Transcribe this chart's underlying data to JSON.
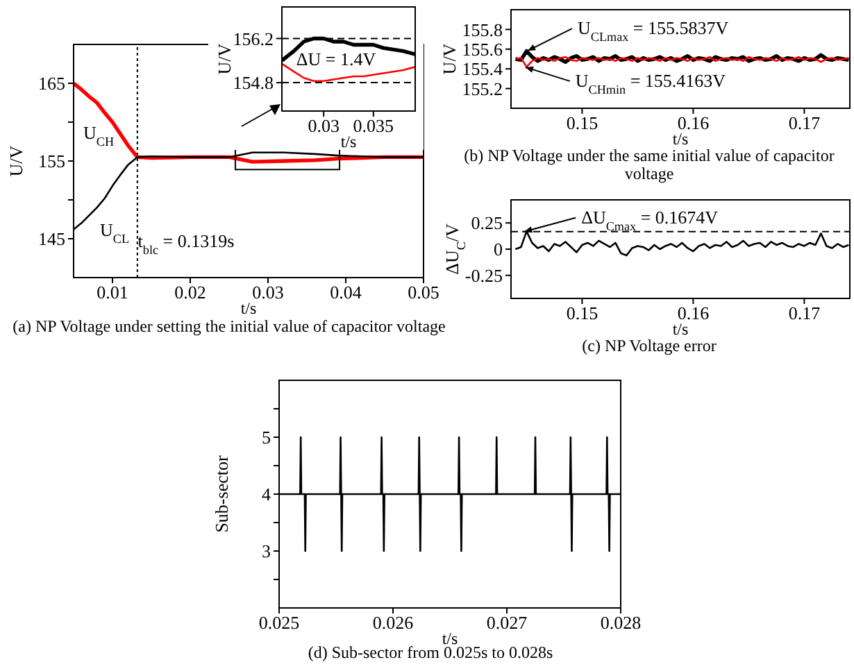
{
  "chart_data": [
    {
      "type": "line",
      "title": "(a) NP Voltage under setting the initial value of capacitor voltage",
      "xlabel": "t/s",
      "ylabel": "U/V",
      "xlim": [
        0.005,
        0.05
      ],
      "xticks": [
        0.01,
        0.02,
        0.03,
        0.04,
        0.05
      ],
      "ylim": [
        140,
        170
      ],
      "yticks": [
        145,
        {
          "value": 150,
          "label": null
        },
        155,
        {
          "value": 160,
          "label": null
        },
        165
      ],
      "series": [
        {
          "name": "U$_{CH}$",
          "color": "#ff0000",
          "x": [
            0.005,
            0.006,
            0.007,
            0.008,
            0.009,
            0.01,
            0.011,
            0.012,
            0.0132,
            0.015,
            0.02,
            0.025,
            0.028,
            0.032,
            0.036,
            0.039,
            0.042,
            0.045,
            0.05
          ],
          "values": [
            165,
            164.2,
            163.3,
            162.5,
            161.2,
            160,
            158.5,
            157,
            155.5,
            155.4,
            155.5,
            155.5,
            154.9,
            155,
            155.1,
            155.3,
            155.4,
            155.5,
            155.5
          ]
        },
        {
          "name": "U$_{CL}$",
          "color": "#000000",
          "x": [
            0.005,
            0.006,
            0.007,
            0.008,
            0.009,
            0.01,
            0.011,
            0.012,
            0.0132,
            0.015,
            0.02,
            0.025,
            0.028,
            0.032,
            0.036,
            0.039,
            0.042,
            0.045,
            0.05
          ],
          "values": [
            146.2,
            147,
            148,
            149,
            150.2,
            151.8,
            153.2,
            154.5,
            155.5,
            155.6,
            155.5,
            155.5,
            156.1,
            156.1,
            155.9,
            155.7,
            155.6,
            155.5,
            155.5
          ]
        }
      ],
      "ref_lines": [
        {
          "axis": "x",
          "value": 0.0132,
          "line_style": "dotted",
          "color": "#000000"
        }
      ],
      "annotations": [
        "t$_{blc}$ = 0.1319s"
      ]
    },
    {
      "type": "line",
      "ylabel": "U/V",
      "xlabel": "t/s",
      "xlim": [
        0.0258,
        0.0392
      ],
      "xticks": [
        0.03,
        0.035
      ],
      "ylim": [
        153.9,
        157.2
      ],
      "yticks": [
        154.8,
        156.2
      ],
      "series": [
        {
          "color": "#000000",
          "x": [
            0.0258,
            0.027,
            0.028,
            0.029,
            0.03,
            0.031,
            0.032,
            0.033,
            0.034,
            0.035,
            0.036,
            0.037,
            0.038,
            0.0392
          ],
          "values": [
            155.5,
            155.8,
            156.1,
            156.2,
            156.2,
            156.1,
            156.1,
            156.0,
            156.0,
            156.0,
            155.9,
            155.85,
            155.8,
            155.7
          ]
        },
        {
          "color": "#ff0000",
          "x": [
            0.0258,
            0.027,
            0.028,
            0.029,
            0.03,
            0.031,
            0.032,
            0.033,
            0.034,
            0.035,
            0.036,
            0.037,
            0.038,
            0.0392
          ],
          "values": [
            155.4,
            155.15,
            154.95,
            154.85,
            154.85,
            154.9,
            154.95,
            155.0,
            155.0,
            155.05,
            155.1,
            155.15,
            155.2,
            155.3
          ]
        }
      ],
      "ref_lines": [
        {
          "axis": "y",
          "value": 154.8,
          "line_style": "dashed",
          "color": "#000000"
        },
        {
          "axis": "y",
          "value": 156.2,
          "line_style": "dashed",
          "color": "#000000"
        }
      ],
      "annotations": [
        "ΔU = 1.4V"
      ]
    },
    {
      "type": "line",
      "title": "(b) NP Voltage under the same initial value of capacitor voltage",
      "xlabel": "t/s",
      "ylabel": "U/V",
      "xlim": [
        0.1436,
        0.1741
      ],
      "xticks": [
        0.15,
        0.16,
        0.17
      ],
      "ylim": [
        155,
        156
      ],
      "yticks": [
        155.2,
        155.4,
        155.6,
        155.8
      ],
      "x": [
        0.144,
        0.1445,
        0.145,
        0.1455,
        0.146,
        0.1465,
        0.147,
        0.1475,
        0.148,
        0.1485,
        0.149,
        0.1495,
        0.15,
        0.1505,
        0.151,
        0.1515,
        0.152,
        0.1525,
        0.153,
        0.1535,
        0.154,
        0.1545,
        0.155,
        0.1555,
        0.156,
        0.1565,
        0.157,
        0.1575,
        0.158,
        0.1585,
        0.159,
        0.1595,
        0.16,
        0.1605,
        0.161,
        0.1615,
        0.162,
        0.1625,
        0.163,
        0.1635,
        0.164,
        0.1645,
        0.165,
        0.1655,
        0.166,
        0.1665,
        0.167,
        0.1675,
        0.168,
        0.1685,
        0.169,
        0.1695,
        0.17,
        0.1705,
        0.171,
        0.1715,
        0.172,
        0.1725,
        0.173,
        0.1735,
        0.174
      ],
      "series": [
        {
          "color": "#000000",
          "values": [
            155.5,
            155.49,
            155.58,
            155.52,
            155.48,
            155.51,
            155.49,
            155.52,
            155.5,
            155.47,
            155.51,
            155.53,
            155.49,
            155.5,
            155.52,
            155.48,
            155.51,
            155.5,
            155.53,
            155.49,
            155.5,
            155.52,
            155.48,
            155.51,
            155.49,
            155.5,
            155.52,
            155.49,
            155.51,
            155.48,
            155.5,
            155.53,
            155.49,
            155.51,
            155.5,
            155.48,
            155.52,
            155.5,
            155.49,
            155.51,
            155.5,
            155.52,
            155.48,
            155.5,
            155.51,
            155.49,
            155.5,
            155.53,
            155.49,
            155.51,
            155.5,
            155.48,
            155.51,
            155.49,
            155.5,
            155.54,
            155.5,
            155.49,
            155.51,
            155.5,
            155.49
          ]
        },
        {
          "color": "#ff0000",
          "values": [
            155.5,
            155.51,
            155.42,
            155.48,
            155.51,
            155.49,
            155.5,
            155.48,
            155.51,
            155.52,
            155.49,
            155.48,
            155.51,
            155.5,
            155.49,
            155.51,
            155.49,
            155.5,
            155.48,
            155.51,
            155.5,
            155.48,
            155.51,
            155.49,
            155.51,
            155.5,
            155.48,
            155.51,
            155.49,
            155.51,
            155.5,
            155.48,
            155.51,
            155.49,
            155.5,
            155.52,
            155.48,
            155.5,
            155.51,
            155.49,
            155.5,
            155.48,
            155.52,
            155.5,
            155.49,
            155.51,
            155.5,
            155.48,
            155.51,
            155.49,
            155.5,
            155.52,
            155.49,
            155.51,
            155.5,
            155.47,
            155.5,
            155.51,
            155.49,
            155.5,
            155.51
          ]
        }
      ],
      "annotations": [
        {
          "text": "U$_{CLmax}$ = 155.5837V",
          "x": 0.1451,
          "y": 155.5837
        },
        {
          "text": "U$_{CHmin}$ = 155.4163V",
          "x": 0.1449,
          "y": 155.4163
        }
      ]
    },
    {
      "type": "line",
      "title": "(c) NP Voltage error",
      "xlabel": "t/s",
      "ylabel": "ΔU$_{C}$/V",
      "xlim": [
        0.1436,
        0.1741
      ],
      "xticks": [
        0.15,
        0.16,
        0.17
      ],
      "ylim": [
        -0.47,
        0.47
      ],
      "yticks": [
        -0.25,
        0,
        0.25
      ],
      "x": [
        0.144,
        0.1445,
        0.145,
        0.1455,
        0.146,
        0.1465,
        0.147,
        0.1475,
        0.148,
        0.1485,
        0.149,
        0.1495,
        0.15,
        0.1505,
        0.151,
        0.1515,
        0.152,
        0.1525,
        0.153,
        0.1535,
        0.154,
        0.1545,
        0.155,
        0.1555,
        0.156,
        0.1565,
        0.157,
        0.1575,
        0.158,
        0.1585,
        0.159,
        0.1595,
        0.16,
        0.1605,
        0.161,
        0.1615,
        0.162,
        0.1625,
        0.163,
        0.1635,
        0.164,
        0.1645,
        0.165,
        0.1655,
        0.166,
        0.1665,
        0.167,
        0.1675,
        0.168,
        0.1685,
        0.169,
        0.1695,
        0.17,
        0.1705,
        0.171,
        0.1715,
        0.172,
        0.1725,
        0.173,
        0.1735,
        0.174
      ],
      "values": [
        0.0,
        0.02,
        0.17,
        0.06,
        0.01,
        0.03,
        -0.02,
        0.05,
        0.03,
        0.07,
        0.02,
        -0.03,
        0.04,
        0.06,
        0.03,
        0.08,
        0.05,
        0.02,
        0.06,
        -0.04,
        -0.06,
        0.01,
        0.03,
        0.02,
        -0.01,
        0.04,
        0.0,
        0.03,
        0.05,
        0.02,
        0.06,
        0.01,
        -0.02,
        0.03,
        0.05,
        0.01,
        0.04,
        0.03,
        0.07,
        0.02,
        0.04,
        0.08,
        0.03,
        0.05,
        0.06,
        0.02,
        0.07,
        0.04,
        0.06,
        0.03,
        0.02,
        0.05,
        0.03,
        0.06,
        0.04,
        0.15,
        0.03,
        0.01,
        0.05,
        0.02,
        0.04
      ],
      "color": "#000000",
      "ref_lines": [
        {
          "axis": "y",
          "value": 0.1674,
          "line_style": "dashed",
          "color": "#000000"
        }
      ],
      "annotations": [
        {
          "text": "ΔU$_{Cmax}$ = 0.1674V",
          "x": 0.1448,
          "y": 0.1674
        }
      ]
    },
    {
      "type": "line",
      "title": "(d) Sub-sector from 0.025s to 0.028s",
      "xlabel": "t/s",
      "ylabel": "Sub-sector",
      "xlim": [
        0.025,
        0.028
      ],
      "xticks": [
        0.025,
        0.026,
        0.027,
        0.028
      ],
      "ylim": [
        2,
        6
      ],
      "yticks": [
        {
          "value": 2.5,
          "label": null
        },
        3,
        {
          "value": 3.5,
          "label": null
        },
        4,
        {
          "value": 4.5,
          "label": null
        },
        5,
        {
          "value": 5.5,
          "label": null
        }
      ],
      "x": [
        0.025,
        0.025185,
        0.02519,
        0.025195,
        0.025225,
        0.02523,
        0.025235,
        0.025535,
        0.02554,
        0.025545,
        0.02555,
        0.025555,
        0.025895,
        0.0259,
        0.025905,
        0.025915,
        0.02592,
        0.025925,
        0.026225,
        0.02623,
        0.026235,
        0.02624,
        0.026245,
        0.026575,
        0.02658,
        0.026585,
        0.026595,
        0.0266,
        0.026605,
        0.026905,
        0.02691,
        0.026915,
        0.027245,
        0.02725,
        0.027255,
        0.027555,
        0.02756,
        0.027565,
        0.02757,
        0.027575,
        0.027875,
        0.02788,
        0.027885,
        0.027895,
        0.0279,
        0.027905,
        0.028
      ],
      "values": [
        4,
        4,
        5,
        4,
        4,
        3,
        4,
        4,
        5,
        4,
        3,
        4,
        4,
        5,
        4,
        4,
        3,
        4,
        4,
        5,
        4,
        3,
        4,
        4,
        5,
        4,
        4,
        3,
        4,
        4,
        5,
        4,
        4,
        5,
        4,
        4,
        5,
        4,
        3,
        4,
        4,
        5,
        4,
        4,
        3,
        4,
        4
      ],
      "color": "#000000"
    }
  ]
}
